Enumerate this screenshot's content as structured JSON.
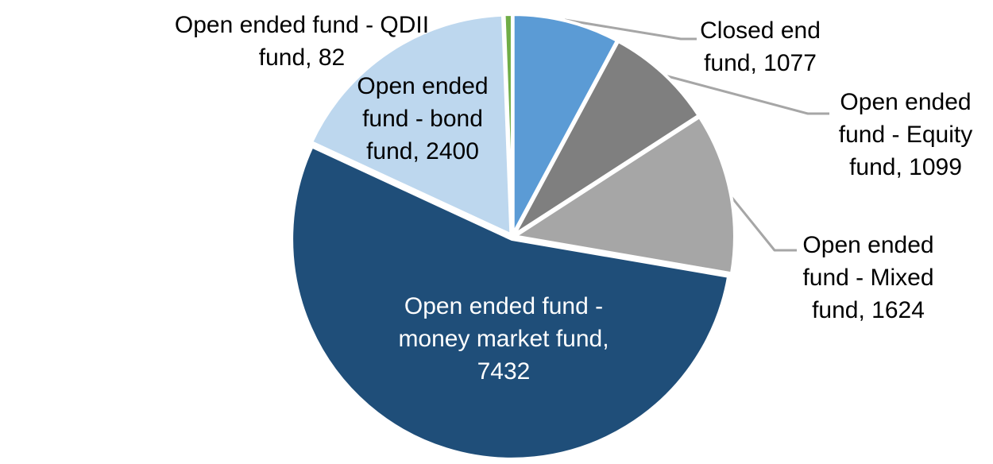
{
  "chart_data": {
    "type": "pie",
    "title": "",
    "legend_position": "none",
    "data_label_format": "category name, value",
    "start_angle_deg": 0,
    "direction": "clockwise",
    "total": 13714,
    "slices": [
      {
        "label": "Closed end fund",
        "value": 1077,
        "color": "#5B9BD5"
      },
      {
        "label": "Open ended fund - Equity fund",
        "value": 1099,
        "color": "#7F7F7F"
      },
      {
        "label": "Open ended fund - Mixed fund",
        "value": 1624,
        "color": "#A6A6A6"
      },
      {
        "label": "Open ended fund - money market fund",
        "value": 7432,
        "color": "#1F4E79"
      },
      {
        "label": "Open ended fund - bond fund",
        "value": 2400,
        "color": "#BDD7EE"
      },
      {
        "label": "Open ended fund - QDII fund",
        "value": 82,
        "color": "#70AD47"
      }
    ]
  },
  "callout_labels": {
    "closed_end": {
      "lines": [
        "Closed end",
        "fund, 1077"
      ]
    },
    "equity": {
      "lines": [
        "Open ended",
        "fund - Equity",
        "fund, 1099"
      ]
    },
    "mixed": {
      "lines": [
        "Open ended",
        "fund - Mixed",
        "fund, 1624"
      ]
    },
    "money_market": {
      "lines": [
        "Open ended fund -",
        "money market fund,",
        "7432"
      ]
    },
    "bond": {
      "lines": [
        "Open ended",
        "fund - bond",
        "fund, 2400"
      ]
    },
    "qdii": {
      "lines": [
        "Open ended fund - QDII",
        "fund, 82"
      ]
    }
  },
  "styles": {
    "leader_line_color": "#A6A6A6",
    "slice_border_color": "#FFFFFF",
    "outside_label_color": "#000000",
    "inside_label_color": "#FFFFFF",
    "background": "#FFFFFF"
  }
}
